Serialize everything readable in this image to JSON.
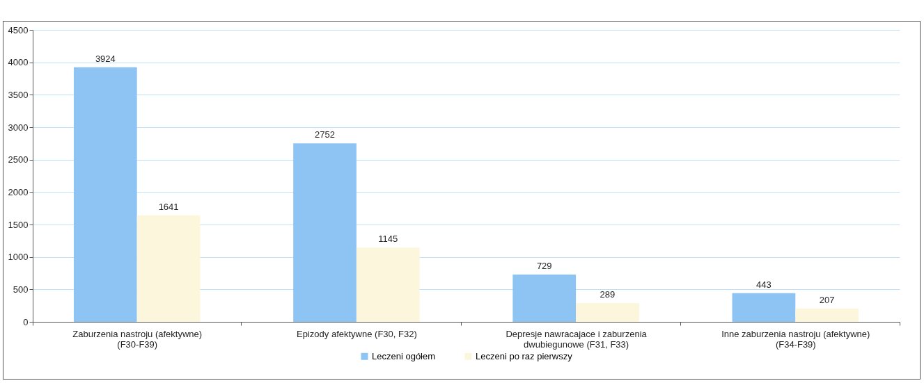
{
  "chart_data": {
    "type": "bar",
    "categories": [
      "Zaburzenia nastroju (afektywne) (F30-F39)",
      "Epizody afektywne (F30, F32)",
      "Depresje nawracajace i zaburzenia dwubiegunowe (F31, F33)",
      "Inne zaburzenia nastroju (afektywne) (F34-F39)"
    ],
    "series": [
      {
        "name": "Leczeni ogółem",
        "color": "#8ec4f3",
        "values": [
          3924,
          2752,
          729,
          443
        ]
      },
      {
        "name": "Leczeni po raz pierwszy",
        "color": "#fbf6dc",
        "values": [
          1641,
          1145,
          289,
          207
        ]
      }
    ],
    "ylim": [
      0,
      4500
    ],
    "yticks": [
      0,
      500,
      1000,
      1500,
      2000,
      2500,
      3000,
      3500,
      4000,
      4500
    ],
    "grid": "y",
    "legend": "bottom",
    "data_labels": true
  }
}
